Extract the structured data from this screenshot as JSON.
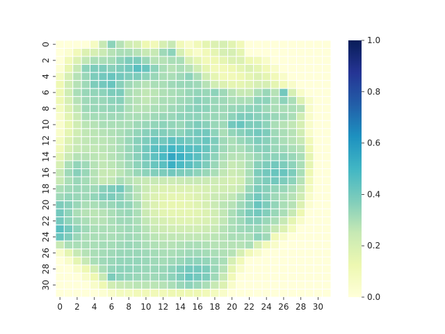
{
  "chart_data": {
    "type": "heatmap",
    "title": "",
    "xlabel": "",
    "ylabel": "",
    "rows": 32,
    "cols": 32,
    "x_tick_labels": [
      "0",
      "2",
      "4",
      "6",
      "8",
      "10",
      "12",
      "14",
      "16",
      "18",
      "20",
      "22",
      "24",
      "26",
      "28",
      "30"
    ],
    "y_tick_labels": [
      "0",
      "2",
      "4",
      "6",
      "8",
      "10",
      "12",
      "14",
      "16",
      "18",
      "20",
      "22",
      "24",
      "26",
      "28",
      "30"
    ],
    "colorbar": {
      "vmin": 0.0,
      "vmax": 1.0,
      "tick_labels": [
        "0.0",
        "0.2",
        "0.4",
        "0.6",
        "0.8",
        "1.0"
      ],
      "colormap": "YlGnBu",
      "stops": [
        "#ffffd9",
        "#edf8b1",
        "#c7e9b4",
        "#7fcdbb",
        "#41b6c4",
        "#1d91c0",
        "#225ea8",
        "#253494",
        "#081d58"
      ]
    },
    "grid_color": "#ffffff",
    "values": [
      [
        0.0,
        0.0,
        0.0,
        0.0,
        0.07,
        0.25,
        0.35,
        0.28,
        0.22,
        0.2,
        0.12,
        0.1,
        0.2,
        0.25,
        0.1,
        0.05,
        0.1,
        0.15,
        0.18,
        0.2,
        0.16,
        0.1,
        0.0,
        0.0,
        0.0,
        0.0,
        0.0,
        0.0,
        0.0,
        0.0,
        0.0,
        0.0
      ],
      [
        0.0,
        0.03,
        0.1,
        0.18,
        0.2,
        0.24,
        0.28,
        0.3,
        0.3,
        0.28,
        0.25,
        0.25,
        0.32,
        0.35,
        0.2,
        0.1,
        0.05,
        0.1,
        0.15,
        0.2,
        0.2,
        0.15,
        0.0,
        0.0,
        0.0,
        0.0,
        0.0,
        0.0,
        0.0,
        0.0,
        0.0,
        0.0
      ],
      [
        0.0,
        0.1,
        0.18,
        0.26,
        0.3,
        0.3,
        0.31,
        0.35,
        0.38,
        0.38,
        0.33,
        0.28,
        0.28,
        0.3,
        0.3,
        0.2,
        0.15,
        0.1,
        0.12,
        0.15,
        0.18,
        0.18,
        0.12,
        0.1,
        0.05,
        0.0,
        0.0,
        0.0,
        0.0,
        0.0,
        0.0,
        0.0
      ],
      [
        0.02,
        0.14,
        0.25,
        0.35,
        0.38,
        0.38,
        0.36,
        0.38,
        0.4,
        0.45,
        0.42,
        0.35,
        0.3,
        0.28,
        0.3,
        0.28,
        0.22,
        0.15,
        0.1,
        0.1,
        0.12,
        0.15,
        0.18,
        0.15,
        0.1,
        0.05,
        0.0,
        0.0,
        0.0,
        0.0,
        0.0,
        0.0
      ],
      [
        0.08,
        0.2,
        0.28,
        0.33,
        0.38,
        0.4,
        0.42,
        0.4,
        0.38,
        0.38,
        0.35,
        0.33,
        0.3,
        0.3,
        0.32,
        0.35,
        0.3,
        0.22,
        0.15,
        0.1,
        0.1,
        0.12,
        0.15,
        0.18,
        0.15,
        0.1,
        0.05,
        0.0,
        0.0,
        0.0,
        0.0,
        0.0
      ],
      [
        0.12,
        0.22,
        0.28,
        0.32,
        0.38,
        0.4,
        0.42,
        0.36,
        0.32,
        0.3,
        0.28,
        0.3,
        0.3,
        0.32,
        0.33,
        0.33,
        0.32,
        0.28,
        0.22,
        0.18,
        0.15,
        0.15,
        0.17,
        0.2,
        0.2,
        0.15,
        0.1,
        0.05,
        0.0,
        0.0,
        0.0,
        0.0
      ],
      [
        0.12,
        0.22,
        0.3,
        0.33,
        0.34,
        0.35,
        0.38,
        0.38,
        0.3,
        0.28,
        0.26,
        0.27,
        0.29,
        0.3,
        0.31,
        0.33,
        0.34,
        0.33,
        0.35,
        0.32,
        0.28,
        0.25,
        0.25,
        0.3,
        0.33,
        0.28,
        0.4,
        0.2,
        0.05,
        0.0,
        0.0,
        0.0
      ],
      [
        0.12,
        0.2,
        0.28,
        0.32,
        0.33,
        0.33,
        0.35,
        0.36,
        0.3,
        0.28,
        0.26,
        0.28,
        0.3,
        0.3,
        0.32,
        0.33,
        0.36,
        0.34,
        0.33,
        0.32,
        0.3,
        0.3,
        0.3,
        0.35,
        0.35,
        0.3,
        0.35,
        0.3,
        0.18,
        0.05,
        0.0,
        0.0
      ],
      [
        0.08,
        0.18,
        0.26,
        0.32,
        0.33,
        0.33,
        0.34,
        0.34,
        0.3,
        0.28,
        0.28,
        0.3,
        0.3,
        0.32,
        0.33,
        0.35,
        0.36,
        0.35,
        0.33,
        0.32,
        0.33,
        0.34,
        0.35,
        0.35,
        0.32,
        0.3,
        0.3,
        0.3,
        0.28,
        0.05,
        0.0,
        0.0
      ],
      [
        0.05,
        0.16,
        0.24,
        0.3,
        0.31,
        0.31,
        0.32,
        0.32,
        0.3,
        0.3,
        0.3,
        0.32,
        0.33,
        0.33,
        0.35,
        0.35,
        0.35,
        0.33,
        0.33,
        0.32,
        0.35,
        0.38,
        0.38,
        0.36,
        0.35,
        0.33,
        0.32,
        0.3,
        0.22,
        0.05,
        0.0,
        0.0
      ],
      [
        0.04,
        0.14,
        0.22,
        0.27,
        0.28,
        0.3,
        0.3,
        0.3,
        0.3,
        0.32,
        0.33,
        0.34,
        0.35,
        0.34,
        0.33,
        0.36,
        0.38,
        0.36,
        0.33,
        0.32,
        0.4,
        0.42,
        0.38,
        0.38,
        0.35,
        0.3,
        0.28,
        0.26,
        0.2,
        0.05,
        0.0,
        0.0
      ],
      [
        0.05,
        0.15,
        0.22,
        0.26,
        0.27,
        0.28,
        0.29,
        0.3,
        0.32,
        0.34,
        0.36,
        0.38,
        0.37,
        0.36,
        0.35,
        0.38,
        0.4,
        0.4,
        0.35,
        0.3,
        0.34,
        0.36,
        0.38,
        0.4,
        0.38,
        0.32,
        0.3,
        0.28,
        0.22,
        0.05,
        0.0,
        0.0
      ],
      [
        0.08,
        0.18,
        0.24,
        0.26,
        0.27,
        0.27,
        0.28,
        0.3,
        0.33,
        0.36,
        0.38,
        0.42,
        0.4,
        0.44,
        0.42,
        0.4,
        0.4,
        0.42,
        0.38,
        0.32,
        0.3,
        0.33,
        0.35,
        0.38,
        0.36,
        0.33,
        0.3,
        0.28,
        0.25,
        0.1,
        0.0,
        0.0
      ],
      [
        0.1,
        0.2,
        0.25,
        0.26,
        0.26,
        0.27,
        0.28,
        0.3,
        0.33,
        0.36,
        0.4,
        0.45,
        0.46,
        0.5,
        0.48,
        0.46,
        0.45,
        0.42,
        0.37,
        0.32,
        0.3,
        0.3,
        0.33,
        0.36,
        0.36,
        0.33,
        0.32,
        0.3,
        0.28,
        0.12,
        0.0,
        0.0
      ],
      [
        0.15,
        0.24,
        0.28,
        0.28,
        0.27,
        0.26,
        0.28,
        0.3,
        0.33,
        0.36,
        0.4,
        0.44,
        0.48,
        0.55,
        0.52,
        0.48,
        0.45,
        0.4,
        0.35,
        0.3,
        0.28,
        0.28,
        0.3,
        0.33,
        0.35,
        0.35,
        0.35,
        0.33,
        0.3,
        0.15,
        0.0,
        0.0
      ],
      [
        0.2,
        0.3,
        0.34,
        0.32,
        0.28,
        0.26,
        0.27,
        0.29,
        0.32,
        0.35,
        0.38,
        0.42,
        0.45,
        0.52,
        0.48,
        0.45,
        0.42,
        0.38,
        0.33,
        0.28,
        0.25,
        0.26,
        0.3,
        0.36,
        0.38,
        0.4,
        0.38,
        0.35,
        0.3,
        0.15,
        0.0,
        0.0
      ],
      [
        0.25,
        0.32,
        0.36,
        0.33,
        0.28,
        0.25,
        0.25,
        0.27,
        0.3,
        0.33,
        0.35,
        0.37,
        0.38,
        0.4,
        0.38,
        0.37,
        0.35,
        0.33,
        0.3,
        0.26,
        0.23,
        0.25,
        0.3,
        0.38,
        0.4,
        0.42,
        0.42,
        0.38,
        0.3,
        0.12,
        0.0,
        0.0
      ],
      [
        0.25,
        0.3,
        0.33,
        0.31,
        0.28,
        0.25,
        0.26,
        0.3,
        0.28,
        0.26,
        0.25,
        0.25,
        0.24,
        0.23,
        0.24,
        0.25,
        0.25,
        0.24,
        0.23,
        0.22,
        0.2,
        0.22,
        0.3,
        0.36,
        0.38,
        0.4,
        0.38,
        0.35,
        0.28,
        0.1,
        0.0,
        0.0
      ],
      [
        0.3,
        0.32,
        0.33,
        0.32,
        0.32,
        0.36,
        0.38,
        0.4,
        0.33,
        0.28,
        0.24,
        0.2,
        0.18,
        0.18,
        0.18,
        0.18,
        0.19,
        0.2,
        0.22,
        0.22,
        0.22,
        0.25,
        0.33,
        0.38,
        0.36,
        0.34,
        0.33,
        0.3,
        0.25,
        0.08,
        0.0,
        0.0
      ],
      [
        0.32,
        0.34,
        0.33,
        0.32,
        0.34,
        0.37,
        0.38,
        0.36,
        0.32,
        0.28,
        0.22,
        0.18,
        0.16,
        0.15,
        0.15,
        0.16,
        0.18,
        0.2,
        0.24,
        0.25,
        0.26,
        0.3,
        0.36,
        0.4,
        0.36,
        0.32,
        0.3,
        0.28,
        0.22,
        0.05,
        0.0,
        0.0
      ],
      [
        0.38,
        0.36,
        0.33,
        0.3,
        0.3,
        0.32,
        0.33,
        0.35,
        0.34,
        0.3,
        0.23,
        0.18,
        0.15,
        0.14,
        0.14,
        0.15,
        0.17,
        0.2,
        0.24,
        0.27,
        0.28,
        0.32,
        0.36,
        0.42,
        0.38,
        0.34,
        0.3,
        0.28,
        0.18,
        0.03,
        0.0,
        0.0
      ],
      [
        0.4,
        0.35,
        0.3,
        0.28,
        0.27,
        0.28,
        0.3,
        0.32,
        0.33,
        0.3,
        0.24,
        0.19,
        0.16,
        0.15,
        0.15,
        0.15,
        0.16,
        0.18,
        0.22,
        0.26,
        0.3,
        0.34,
        0.38,
        0.4,
        0.37,
        0.33,
        0.3,
        0.25,
        0.12,
        0.0,
        0.0,
        0.0
      ],
      [
        0.4,
        0.35,
        0.32,
        0.3,
        0.28,
        0.28,
        0.3,
        0.32,
        0.32,
        0.3,
        0.26,
        0.22,
        0.2,
        0.18,
        0.17,
        0.17,
        0.18,
        0.19,
        0.22,
        0.26,
        0.3,
        0.32,
        0.36,
        0.36,
        0.33,
        0.3,
        0.25,
        0.15,
        0.05,
        0.0,
        0.0,
        0.0
      ],
      [
        0.45,
        0.4,
        0.35,
        0.32,
        0.3,
        0.3,
        0.3,
        0.31,
        0.32,
        0.31,
        0.28,
        0.25,
        0.23,
        0.22,
        0.22,
        0.22,
        0.22,
        0.23,
        0.25,
        0.28,
        0.3,
        0.32,
        0.33,
        0.33,
        0.3,
        0.25,
        0.18,
        0.08,
        0.0,
        0.0,
        0.0,
        0.0
      ],
      [
        0.42,
        0.38,
        0.33,
        0.3,
        0.3,
        0.3,
        0.3,
        0.31,
        0.32,
        0.31,
        0.29,
        0.27,
        0.26,
        0.26,
        0.26,
        0.26,
        0.26,
        0.26,
        0.27,
        0.28,
        0.3,
        0.3,
        0.3,
        0.35,
        0.32,
        0.1,
        0.05,
        0.0,
        0.0,
        0.0,
        0.0,
        0.0
      ],
      [
        0.25,
        0.3,
        0.3,
        0.3,
        0.3,
        0.31,
        0.31,
        0.32,
        0.33,
        0.32,
        0.3,
        0.29,
        0.28,
        0.28,
        0.29,
        0.3,
        0.3,
        0.29,
        0.28,
        0.28,
        0.28,
        0.28,
        0.3,
        0.2,
        0.1,
        0.05,
        0.0,
        0.0,
        0.0,
        0.0,
        0.0,
        0.0
      ],
      [
        0.05,
        0.15,
        0.25,
        0.28,
        0.3,
        0.31,
        0.32,
        0.33,
        0.33,
        0.33,
        0.32,
        0.31,
        0.3,
        0.3,
        0.31,
        0.32,
        0.32,
        0.31,
        0.3,
        0.29,
        0.28,
        0.2,
        0.1,
        0.05,
        0.0,
        0.0,
        0.0,
        0.0,
        0.0,
        0.0,
        0.0,
        0.0
      ],
      [
        0.0,
        0.05,
        0.15,
        0.25,
        0.3,
        0.32,
        0.33,
        0.34,
        0.34,
        0.34,
        0.33,
        0.32,
        0.31,
        0.32,
        0.33,
        0.35,
        0.35,
        0.34,
        0.32,
        0.3,
        0.2,
        0.1,
        0.0,
        0.0,
        0.0,
        0.0,
        0.0,
        0.0,
        0.0,
        0.0,
        0.0,
        0.0
      ],
      [
        0.0,
        0.0,
        0.05,
        0.12,
        0.22,
        0.3,
        0.34,
        0.35,
        0.35,
        0.34,
        0.33,
        0.33,
        0.33,
        0.35,
        0.38,
        0.4,
        0.4,
        0.38,
        0.33,
        0.28,
        0.15,
        0.05,
        0.0,
        0.0,
        0.0,
        0.0,
        0.0,
        0.0,
        0.0,
        0.0,
        0.0,
        0.0
      ],
      [
        0.0,
        0.0,
        0.0,
        0.05,
        0.12,
        0.25,
        0.38,
        0.35,
        0.34,
        0.33,
        0.32,
        0.32,
        0.33,
        0.35,
        0.38,
        0.42,
        0.4,
        0.38,
        0.32,
        0.25,
        0.1,
        0.0,
        0.0,
        0.0,
        0.0,
        0.0,
        0.0,
        0.0,
        0.0,
        0.0,
        0.0,
        0.0
      ],
      [
        0.0,
        0.0,
        0.0,
        0.0,
        0.05,
        0.12,
        0.22,
        0.25,
        0.26,
        0.27,
        0.27,
        0.27,
        0.28,
        0.3,
        0.33,
        0.35,
        0.33,
        0.3,
        0.25,
        0.18,
        0.05,
        0.0,
        0.0,
        0.0,
        0.0,
        0.0,
        0.0,
        0.0,
        0.0,
        0.0,
        0.0,
        0.0
      ],
      [
        0.0,
        0.0,
        0.0,
        0.0,
        0.0,
        0.02,
        0.05,
        0.08,
        0.08,
        0.1,
        0.1,
        0.1,
        0.1,
        0.12,
        0.12,
        0.12,
        0.12,
        0.1,
        0.08,
        0.05,
        0.0,
        0.0,
        0.0,
        0.0,
        0.0,
        0.0,
        0.0,
        0.0,
        0.0,
        0.0,
        0.0,
        0.0
      ]
    ]
  }
}
